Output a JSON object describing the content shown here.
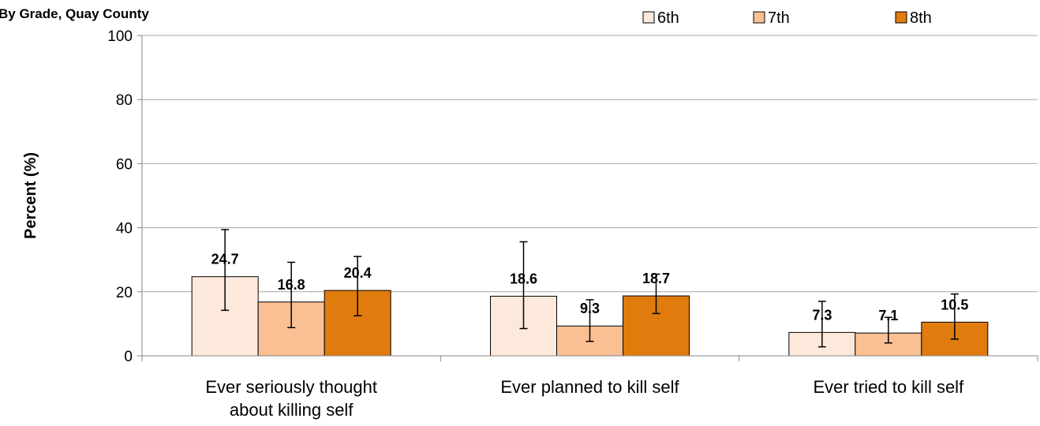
{
  "chart_data": {
    "type": "bar",
    "title": "By Grade, Quay County",
    "ylabel": "Percent (%)",
    "xlabel": "",
    "ylim": [
      0,
      100
    ],
    "yticks": [
      0,
      20,
      40,
      60,
      80,
      100
    ],
    "grid": true,
    "legend_position": "top-right",
    "categories": [
      [
        "Ever seriously thought",
        "about killing self"
      ],
      [
        "Ever planned to kill self"
      ],
      [
        "Ever tried to kill self"
      ]
    ],
    "series": [
      {
        "name": "6th",
        "color": "#fde9dc",
        "values": [
          24.7,
          18.6,
          7.3
        ],
        "error_low": [
          14.2,
          8.5,
          2.8
        ],
        "error_high": [
          39.4,
          35.6,
          17.0
        ]
      },
      {
        "name": "7th",
        "color": "#fbbf94",
        "values": [
          16.8,
          9.3,
          7.1
        ],
        "error_low": [
          8.8,
          4.5,
          4.0
        ],
        "error_high": [
          29.2,
          17.5,
          12.0
        ]
      },
      {
        "name": "8th",
        "color": "#e07b0e",
        "values": [
          20.4,
          18.7,
          10.5
        ],
        "error_low": [
          12.5,
          13.2,
          5.2
        ],
        "error_high": [
          31.0,
          25.5,
          19.3
        ]
      }
    ]
  }
}
